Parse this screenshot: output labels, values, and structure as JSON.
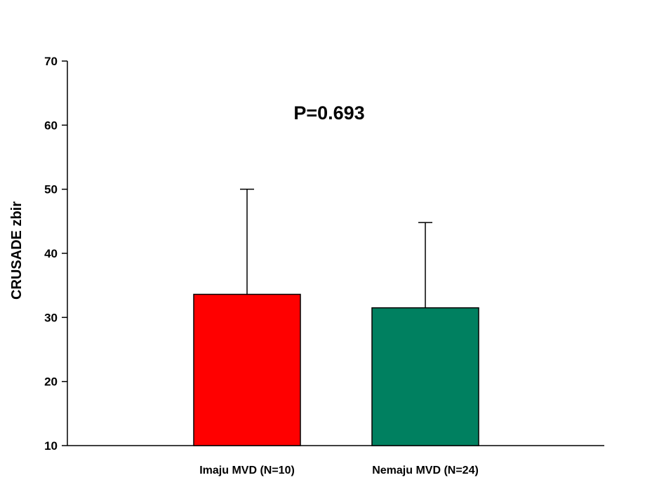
{
  "chart_data": {
    "type": "bar",
    "title": "",
    "xlabel": "",
    "ylabel": "CRUSADE zbir",
    "categories": [
      "Imaju MVD (N=10)",
      "Nemaju MVD (N=24)"
    ],
    "values": [
      33.6,
      31.5
    ],
    "error_upper": [
      50.0,
      44.8
    ],
    "colors": [
      "#ff0000",
      "#008060"
    ],
    "ylim": [
      10,
      70
    ],
    "yticks": [
      10,
      20,
      30,
      40,
      50,
      60,
      70
    ],
    "annotation": "P=0.693",
    "grid": false,
    "legend": "none"
  }
}
